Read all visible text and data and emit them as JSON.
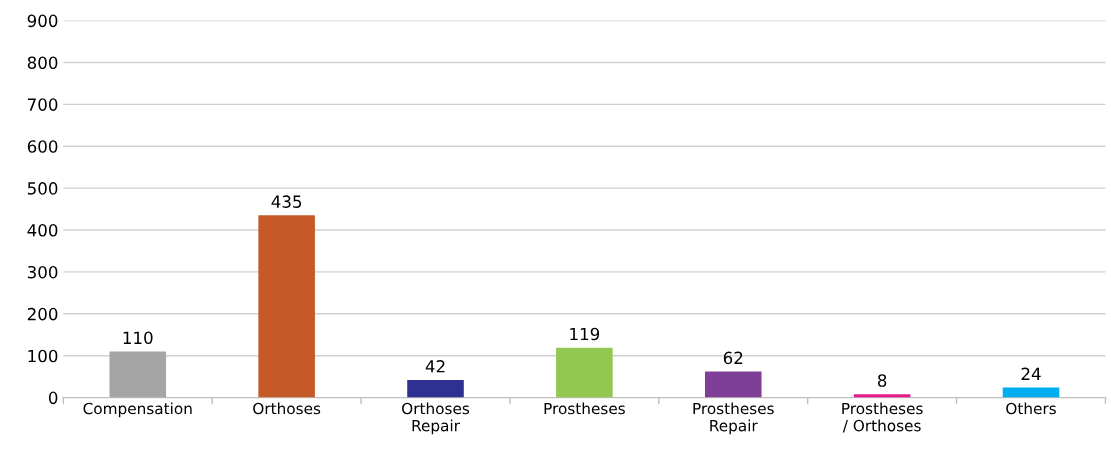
{
  "chart_data": {
    "type": "bar",
    "categories": [
      "Compensation",
      "Orthoses",
      "Orthoses\nRepair",
      "Prostheses",
      "Prostheses\nRepair",
      "Prostheses\n/ Orthoses",
      "Others"
    ],
    "values": [
      110,
      435,
      42,
      119,
      62,
      8,
      24
    ],
    "colors": [
      "#a5a5a5",
      "#c55a28",
      "#2e3192",
      "#92c84f",
      "#7f3f98",
      "#e6188c",
      "#00aeef"
    ],
    "ylim": [
      0,
      900
    ],
    "yticks": [
      0,
      100,
      200,
      300,
      400,
      500,
      600,
      700,
      800,
      900
    ],
    "grid": "y",
    "data_labels": true
  }
}
